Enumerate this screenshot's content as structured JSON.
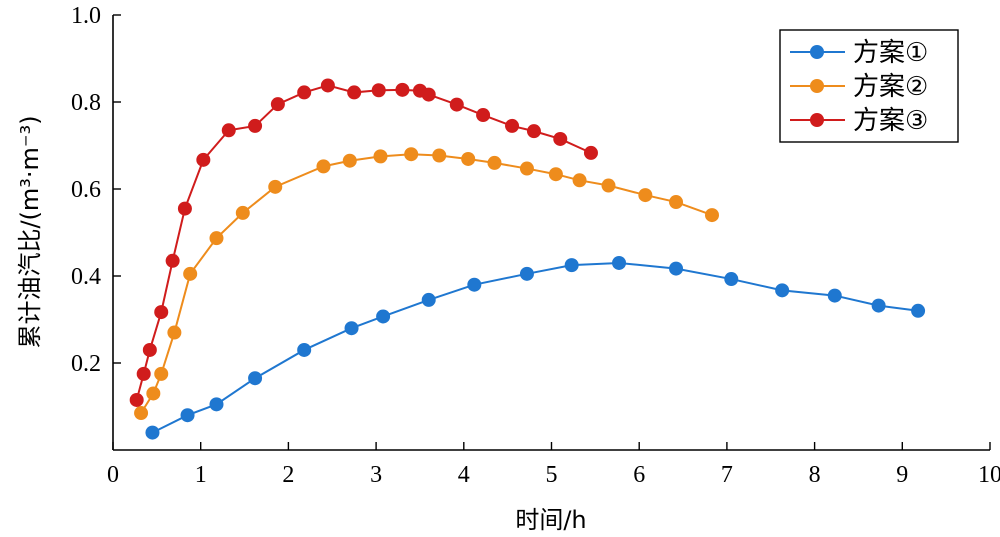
{
  "chart_data": {
    "type": "line",
    "xlabel": "时间/h",
    "ylabel": "累计油汽比/(m³·m⁻³)",
    "xlim": [
      0,
      10
    ],
    "ylim": [
      0,
      1.0
    ],
    "x_ticks": [
      "0",
      "1",
      "2",
      "3",
      "4",
      "5",
      "6",
      "7",
      "8",
      "9",
      "10"
    ],
    "y_ticks": [
      "0.2",
      "0.4",
      "0.6",
      "0.8",
      "1.0"
    ],
    "grid": false,
    "legend_position": "top-right",
    "series": [
      {
        "name": "方案①",
        "color": "#1f77d0",
        "x": [
          0.45,
          0.85,
          1.18,
          1.62,
          2.18,
          2.72,
          3.08,
          3.6,
          4.12,
          4.72,
          5.23,
          5.77,
          6.42,
          7.05,
          7.63,
          8.23,
          8.73,
          9.18
        ],
        "y": [
          0.04,
          0.08,
          0.105,
          0.165,
          0.23,
          0.28,
          0.307,
          0.345,
          0.38,
          0.405,
          0.425,
          0.43,
          0.417,
          0.393,
          0.367,
          0.355,
          0.332,
          0.32
        ]
      },
      {
        "name": "方案②",
        "color": "#ee8c1c",
        "x": [
          0.32,
          0.46,
          0.55,
          0.7,
          0.88,
          1.18,
          1.48,
          1.85,
          2.4,
          2.7,
          3.05,
          3.4,
          3.72,
          4.05,
          4.35,
          4.72,
          5.05,
          5.32,
          5.65,
          6.07,
          6.42,
          6.83
        ],
        "y": [
          0.085,
          0.13,
          0.175,
          0.27,
          0.405,
          0.487,
          0.545,
          0.605,
          0.652,
          0.665,
          0.675,
          0.68,
          0.677,
          0.669,
          0.66,
          0.647,
          0.634,
          0.62,
          0.608,
          0.586,
          0.57,
          0.54
        ]
      },
      {
        "name": "方案③",
        "color": "#d01c1c",
        "x": [
          0.27,
          0.35,
          0.42,
          0.55,
          0.68,
          0.82,
          1.03,
          1.32,
          1.62,
          1.88,
          2.18,
          2.45,
          2.75,
          3.03,
          3.3,
          3.5,
          3.6,
          3.92,
          4.22,
          4.55,
          4.8,
          5.1,
          5.45
        ],
        "y": [
          0.115,
          0.175,
          0.23,
          0.317,
          0.435,
          0.555,
          0.667,
          0.735,
          0.745,
          0.795,
          0.822,
          0.838,
          0.822,
          0.827,
          0.828,
          0.826,
          0.817,
          0.794,
          0.77,
          0.745,
          0.733,
          0.715,
          0.683
        ]
      }
    ]
  }
}
